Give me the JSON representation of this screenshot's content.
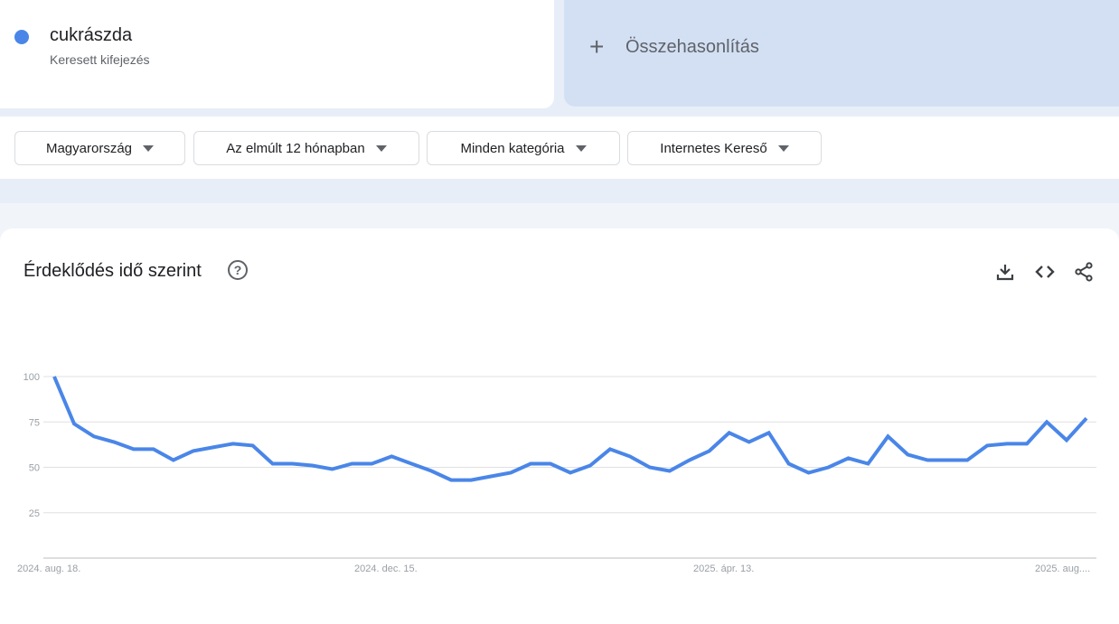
{
  "term": {
    "name": "cukrászda",
    "subtitle": "Keresett kifejezés",
    "color": "#4a86e8"
  },
  "compare": {
    "label": "Összehasonlítás",
    "icon": "plus-icon"
  },
  "filters": [
    "Magyarország",
    "Az elmúlt 12 hónapban",
    "Minden kategória",
    "Internetes Kereső"
  ],
  "card": {
    "title": "Érdeklődés idő szerint",
    "help_icon": "help-circle-icon",
    "tools": [
      "download-icon",
      "embed-code-icon",
      "share-icon"
    ]
  },
  "chart_data": {
    "type": "line",
    "ylim": [
      0,
      100
    ],
    "yticks": [
      "100",
      "75",
      "50",
      "25"
    ],
    "xtick_labels": [
      "2024. aug. 18.",
      "2024. dec. 15.",
      "2025. ápr. 13.",
      "2025. aug...."
    ],
    "grid": true,
    "series": [
      {
        "color": "#4a86e8",
        "values": [
          100,
          74,
          67,
          64,
          60,
          60,
          54,
          59,
          61,
          63,
          62,
          52,
          52,
          51,
          49,
          52,
          52,
          56,
          52,
          48,
          43,
          43,
          45,
          47,
          52,
          52,
          47,
          51,
          60,
          56,
          50,
          48,
          54,
          59,
          69,
          64,
          69,
          52,
          47,
          50,
          55,
          52,
          67,
          57,
          54,
          54,
          54,
          62,
          63,
          63,
          75,
          65,
          77
        ]
      }
    ]
  }
}
